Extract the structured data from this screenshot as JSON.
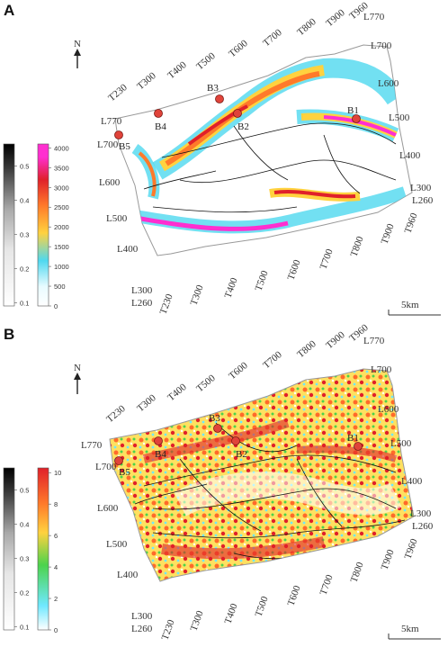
{
  "panels": [
    {
      "id": "A",
      "label": "A",
      "north": "N",
      "scalebar": "5km",
      "bw_bar": {
        "ticks": [
          "0.5",
          "0.4",
          "0.3",
          "0.2",
          "0.1"
        ],
        "values": [
          0.5,
          0.4,
          0.3,
          0.2,
          0.1
        ],
        "min": 0.1,
        "max": 0.55
      },
      "color_bar": {
        "ticks": [
          "4000",
          "3500",
          "3000",
          "2500",
          "2000",
          "1500",
          "1000",
          "500",
          "0"
        ],
        "values": [
          4000,
          3500,
          3000,
          2500,
          2000,
          1500,
          1000,
          500,
          0
        ],
        "min": 0,
        "max": 4100,
        "colors": [
          "#ffffff",
          "#4fd8ef",
          "#ffd23f",
          "#ff7a2a",
          "#e0202a",
          "#ff2fd0"
        ]
      },
      "top_ticks": [
        "T230",
        "T300",
        "T400",
        "T500",
        "T600",
        "T700",
        "T800",
        "T900",
        "T960"
      ],
      "bottom_ticks": [
        "T230",
        "T300",
        "T400",
        "T500",
        "T600",
        "T700",
        "T800",
        "T900",
        "T960"
      ],
      "left_ticks": [
        "L770",
        "L700",
        "L600",
        "L500",
        "L400",
        "L300",
        "L260"
      ],
      "right_ticks": [
        "L770",
        "L700",
        "L600",
        "L500",
        "L400",
        "L300",
        "L260"
      ],
      "wells": [
        "B1",
        "B2",
        "B3",
        "B4",
        "B5"
      ]
    },
    {
      "id": "B",
      "label": "B",
      "north": "N",
      "scalebar": "5km",
      "bw_bar": {
        "ticks": [
          "0.5",
          "0.4",
          "0.3",
          "0.2",
          "0.1"
        ],
        "values": [
          0.5,
          0.4,
          0.3,
          0.2,
          0.1
        ],
        "min": 0.1,
        "max": 0.55
      },
      "color_bar": {
        "ticks": [
          "10",
          "8",
          "6",
          "4",
          "2",
          "0"
        ],
        "values": [
          10,
          8,
          6,
          4,
          2,
          0
        ],
        "min": 0,
        "max": 10.3,
        "colors": [
          "#ffffff",
          "#6fe8ff",
          "#4cd34c",
          "#ffd23f",
          "#ff7a2a",
          "#e0202a"
        ]
      },
      "top_ticks": [
        "T230",
        "T300",
        "T400",
        "T500",
        "T600",
        "T700",
        "T800",
        "T900",
        "T960"
      ],
      "bottom_ticks": [
        "T230",
        "T300",
        "T400",
        "T500",
        "T600",
        "T700",
        "T800",
        "T900",
        "T960"
      ],
      "left_ticks": [
        "L770",
        "L700",
        "L600",
        "L500",
        "L400",
        "L300",
        "L260"
      ],
      "right_ticks": [
        "L770",
        "L700",
        "L600",
        "L500",
        "L400",
        "L300",
        "L260"
      ],
      "wells": [
        "B1",
        "B2",
        "B3",
        "B4",
        "B5"
      ]
    }
  ]
}
